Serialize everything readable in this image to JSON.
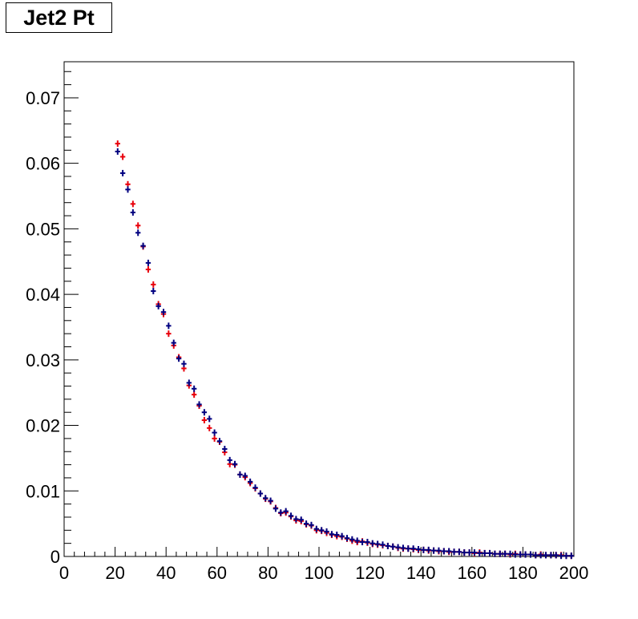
{
  "chart_data": {
    "type": "scatter",
    "title": "Jet2 Pt",
    "xlabel": "",
    "ylabel": "",
    "xlim": [
      0,
      200
    ],
    "ylim": [
      0,
      0.0755
    ],
    "x_ticks": [
      "0",
      "20",
      "40",
      "60",
      "80",
      "100",
      "120",
      "140",
      "160",
      "180",
      "200"
    ],
    "y_ticks": [
      "0",
      "0.01",
      "0.02",
      "0.03",
      "0.04",
      "0.05",
      "0.06",
      "0.07"
    ],
    "grid": false,
    "bin_width": 2,
    "x": [
      21,
      23,
      25,
      27,
      29,
      31,
      33,
      35,
      37,
      39,
      41,
      43,
      45,
      47,
      49,
      51,
      53,
      55,
      57,
      59,
      61,
      63,
      65,
      67,
      69,
      71,
      73,
      75,
      77,
      79,
      81,
      83,
      85,
      87,
      89,
      91,
      93,
      95,
      97,
      99,
      101,
      103,
      105,
      107,
      109,
      111,
      113,
      115,
      117,
      119,
      121,
      123,
      125,
      127,
      129,
      131,
      133,
      135,
      137,
      139,
      141,
      143,
      145,
      147,
      149,
      151,
      153,
      155,
      157,
      159,
      161,
      163,
      165,
      167,
      169,
      171,
      173,
      175,
      177,
      179,
      181,
      183,
      185,
      187,
      189,
      191,
      193,
      195,
      197,
      199
    ],
    "series": [
      {
        "color": "#e8000b",
        "values": [
          0.063,
          0.061,
          0.0568,
          0.0538,
          0.0505,
          0.0473,
          0.0438,
          0.0415,
          0.0385,
          0.037,
          0.034,
          0.0322,
          0.0304,
          0.0287,
          0.0261,
          0.0247,
          0.023,
          0.0208,
          0.0196,
          0.018,
          0.0175,
          0.0159,
          0.0141,
          0.014,
          0.0125,
          0.0121,
          0.0112,
          0.0104,
          0.0096,
          0.0088,
          0.0084,
          0.0074,
          0.0066,
          0.0067,
          0.0061,
          0.0055,
          0.0054,
          0.0049,
          0.0047,
          0.004,
          0.0039,
          0.0036,
          0.0033,
          0.0031,
          0.003,
          0.0027,
          0.0024,
          0.0022,
          0.0023,
          0.0021,
          0.0019,
          0.0018,
          0.0017,
          0.0016,
          0.0015,
          0.0013,
          0.0012,
          0.0012,
          0.0011,
          0.001,
          0.001,
          0.0009,
          0.0009,
          0.0008,
          0.0008,
          0.0007,
          0.0007,
          0.0007,
          0.0006,
          0.0006,
          0.0005,
          0.0006,
          0.0005,
          0.0005,
          0.0004,
          0.0004,
          0.0004,
          0.0003,
          0.0004,
          0.0003,
          0.0003,
          0.0003,
          0.0002,
          0.0003,
          0.0002,
          0.0002,
          0.0002,
          0.0002,
          0.0001,
          0.0001
        ]
      },
      {
        "color": "#000080",
        "values": [
          0.0618,
          0.0585,
          0.056,
          0.0525,
          0.0494,
          0.0474,
          0.0448,
          0.0405,
          0.0382,
          0.0373,
          0.0352,
          0.0326,
          0.0302,
          0.0294,
          0.0265,
          0.0256,
          0.0232,
          0.022,
          0.021,
          0.0189,
          0.0176,
          0.0164,
          0.0147,
          0.0141,
          0.0125,
          0.0123,
          0.0114,
          0.0105,
          0.0096,
          0.0089,
          0.0085,
          0.0073,
          0.0067,
          0.0069,
          0.0062,
          0.0057,
          0.0056,
          0.005,
          0.0048,
          0.0042,
          0.004,
          0.0038,
          0.0034,
          0.0033,
          0.0031,
          0.0028,
          0.0026,
          0.0024,
          0.0022,
          0.0022,
          0.002,
          0.0019,
          0.0018,
          0.0016,
          0.0015,
          0.0014,
          0.0013,
          0.0012,
          0.0012,
          0.0011,
          0.001,
          0.001,
          0.0009,
          0.0009,
          0.0008,
          0.0008,
          0.0007,
          0.0007,
          0.0006,
          0.0006,
          0.0006,
          0.0005,
          0.0005,
          0.0005,
          0.0004,
          0.0004,
          0.0004,
          0.0004,
          0.0003,
          0.0003,
          0.0003,
          0.0003,
          0.0002,
          0.0002,
          0.0002,
          0.0002,
          0.0002,
          0.0001,
          0.0001,
          0.0001
        ]
      }
    ]
  }
}
